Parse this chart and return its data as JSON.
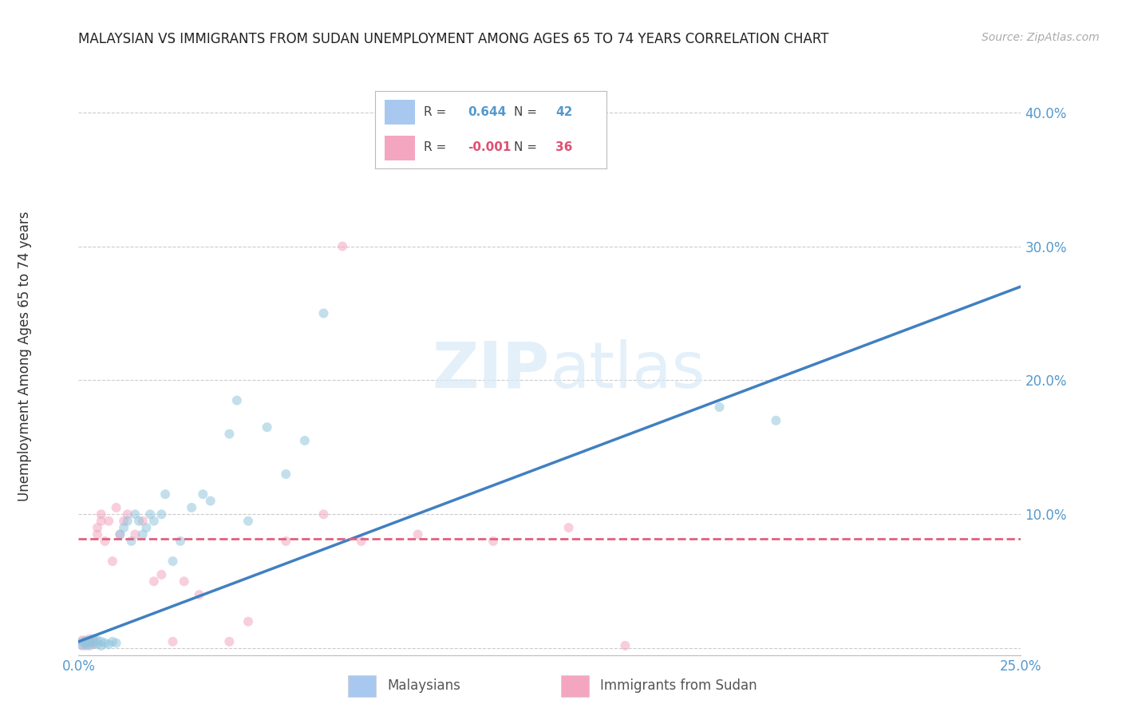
{
  "title": "MALAYSIAN VS IMMIGRANTS FROM SUDAN UNEMPLOYMENT AMONG AGES 65 TO 74 YEARS CORRELATION CHART",
  "source": "Source: ZipAtlas.com",
  "ylabel": "Unemployment Among Ages 65 to 74 years",
  "xlim": [
    0.0,
    0.25
  ],
  "ylim": [
    -0.005,
    0.42
  ],
  "xticks": [
    0.0,
    0.05,
    0.1,
    0.15,
    0.2,
    0.25
  ],
  "yticks": [
    0.0,
    0.1,
    0.2,
    0.3,
    0.4
  ],
  "background_color": "#ffffff",
  "blue_scatter_x": [
    0.001,
    0.001,
    0.002,
    0.002,
    0.003,
    0.003,
    0.004,
    0.004,
    0.005,
    0.005,
    0.006,
    0.006,
    0.007,
    0.008,
    0.009,
    0.01,
    0.011,
    0.012,
    0.013,
    0.014,
    0.015,
    0.016,
    0.017,
    0.018,
    0.019,
    0.02,
    0.022,
    0.023,
    0.025,
    0.027,
    0.03,
    0.033,
    0.035,
    0.04,
    0.042,
    0.045,
    0.05,
    0.055,
    0.06,
    0.065,
    0.17,
    0.185
  ],
  "blue_scatter_y": [
    0.002,
    0.005,
    0.003,
    0.006,
    0.002,
    0.005,
    0.004,
    0.007,
    0.003,
    0.006,
    0.002,
    0.005,
    0.004,
    0.003,
    0.005,
    0.004,
    0.085,
    0.09,
    0.095,
    0.08,
    0.1,
    0.095,
    0.085,
    0.09,
    0.1,
    0.095,
    0.1,
    0.115,
    0.065,
    0.08,
    0.105,
    0.115,
    0.11,
    0.16,
    0.185,
    0.095,
    0.165,
    0.13,
    0.155,
    0.25,
    0.18,
    0.17
  ],
  "pink_scatter_x": [
    0.001,
    0.001,
    0.002,
    0.002,
    0.003,
    0.003,
    0.004,
    0.004,
    0.005,
    0.005,
    0.006,
    0.006,
    0.007,
    0.008,
    0.009,
    0.01,
    0.011,
    0.012,
    0.013,
    0.015,
    0.017,
    0.02,
    0.022,
    0.025,
    0.028,
    0.032,
    0.04,
    0.045,
    0.055,
    0.065,
    0.07,
    0.075,
    0.09,
    0.11,
    0.13,
    0.145
  ],
  "pink_scatter_y": [
    0.003,
    0.006,
    0.002,
    0.005,
    0.004,
    0.007,
    0.003,
    0.006,
    0.085,
    0.09,
    0.095,
    0.1,
    0.08,
    0.095,
    0.065,
    0.105,
    0.085,
    0.095,
    0.1,
    0.085,
    0.095,
    0.05,
    0.055,
    0.005,
    0.05,
    0.04,
    0.005,
    0.02,
    0.08,
    0.1,
    0.3,
    0.08,
    0.085,
    0.08,
    0.09,
    0.002
  ],
  "blue_line_x": [
    0.0,
    0.25
  ],
  "blue_line_y": [
    0.005,
    0.27
  ],
  "pink_line_x": [
    0.0,
    0.25
  ],
  "pink_line_y": [
    0.082,
    0.082
  ],
  "blue_color": "#92c5de",
  "pink_color": "#f4a6c0",
  "blue_line_color": "#4080c0",
  "pink_line_color": "#e06080",
  "marker_size": 75,
  "marker_alpha": 0.55,
  "grid_color": "#cccccc",
  "tick_color": "#5599cc",
  "title_fontsize": 12,
  "source_fontsize": 10,
  "ylabel_fontsize": 12,
  "tick_fontsize": 12
}
